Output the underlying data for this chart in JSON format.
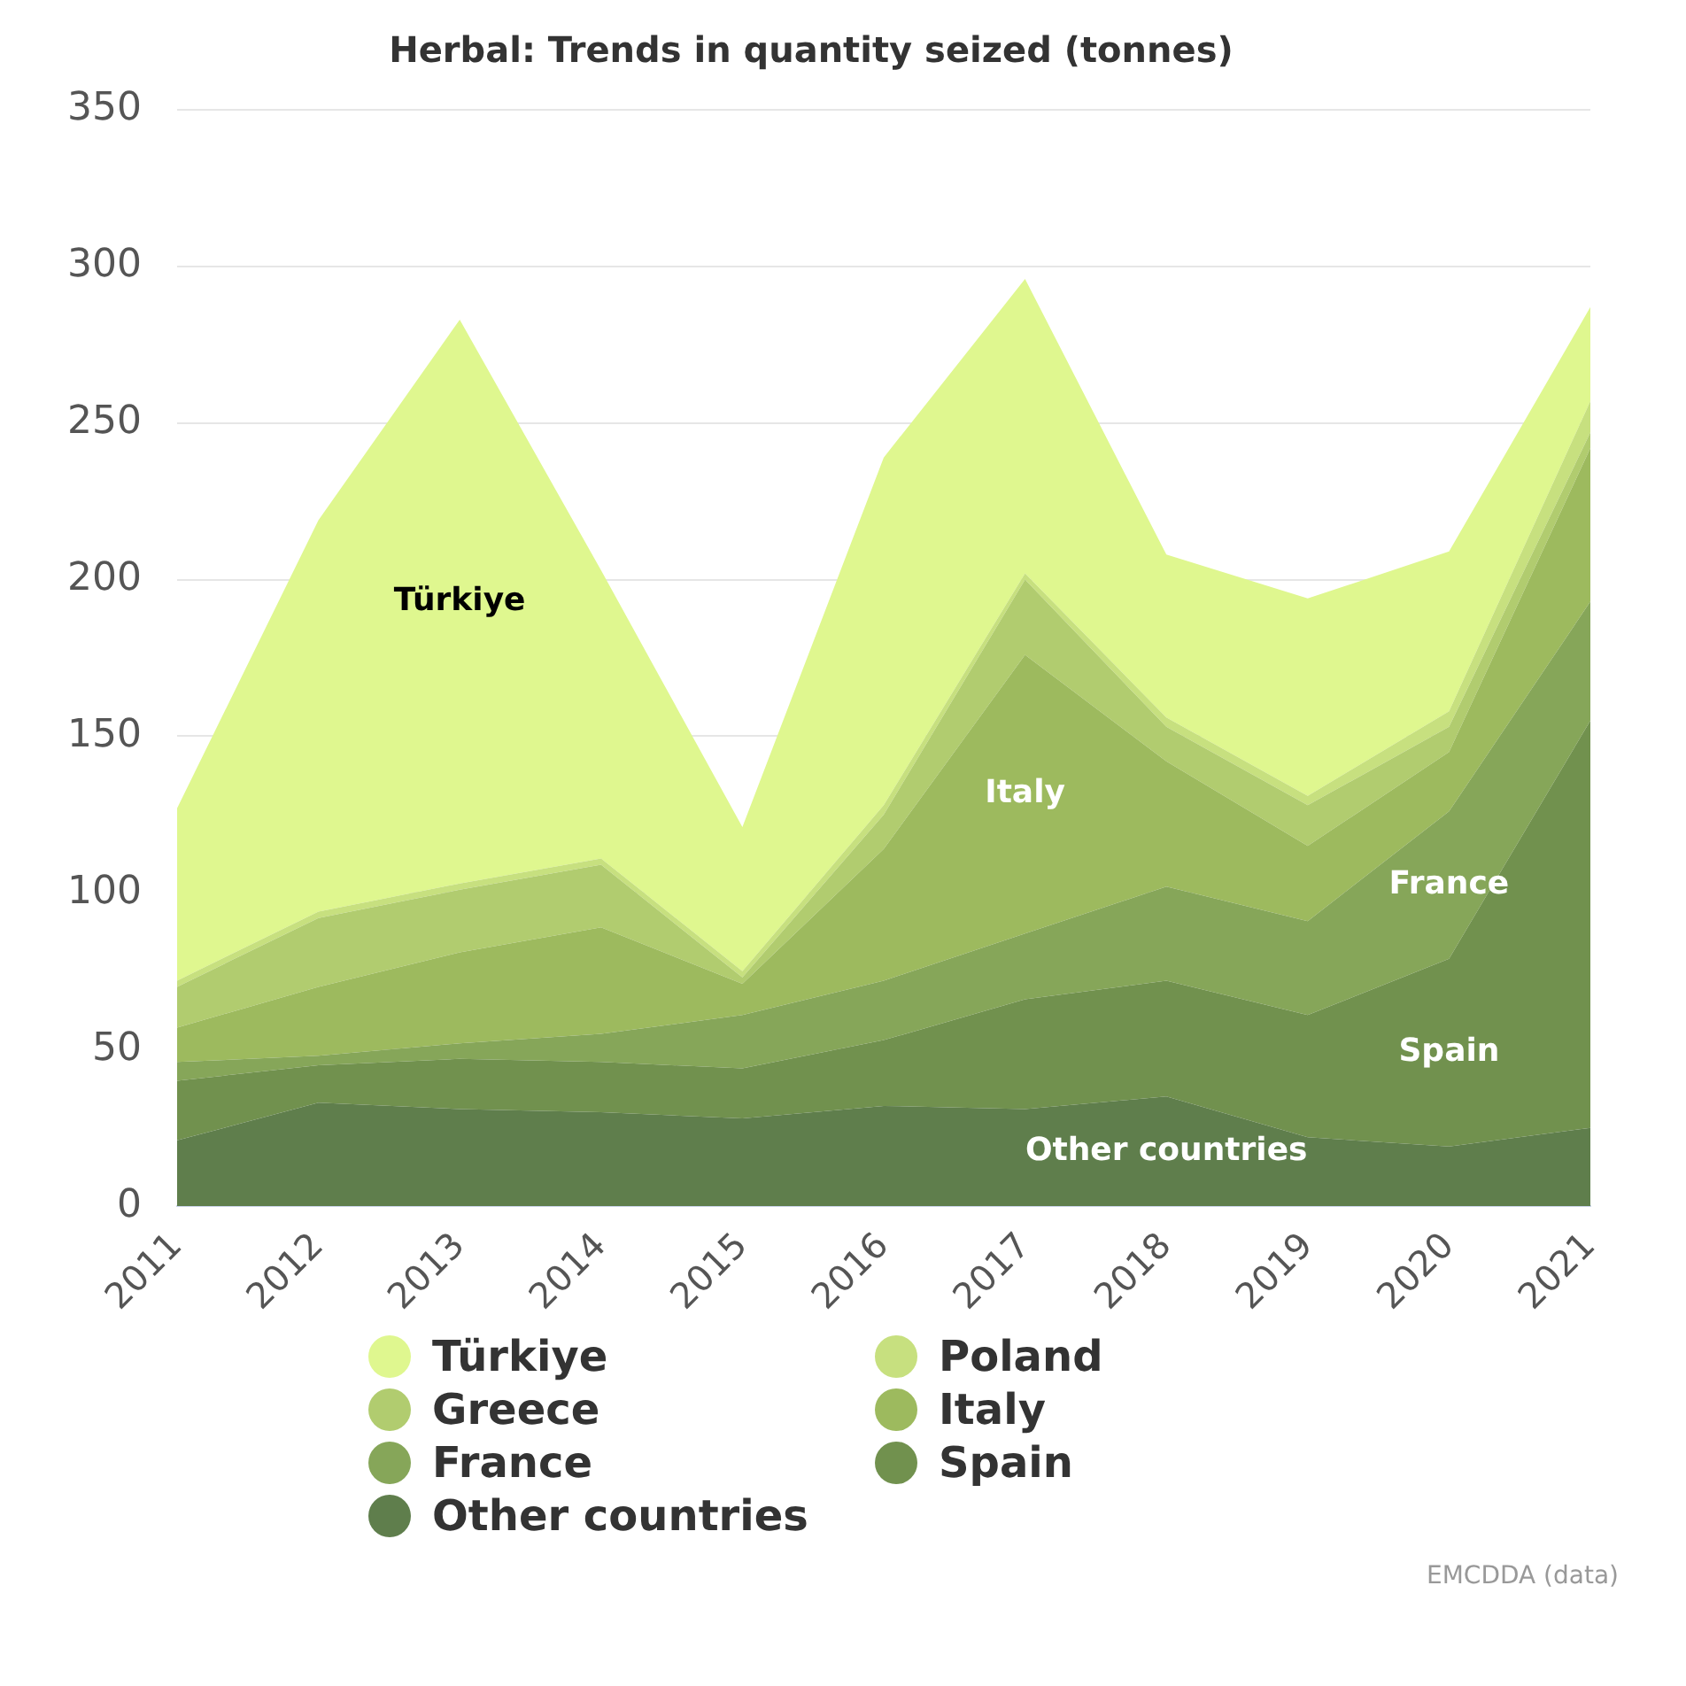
{
  "chart_data": {
    "type": "area",
    "title": "Herbal: Trends in quantity seized (tonnes)",
    "stacked": true,
    "categories": [
      "2011",
      "2012",
      "2013",
      "2014",
      "2015",
      "2016",
      "2017",
      "2018",
      "2019",
      "2020",
      "2021"
    ],
    "series": [
      {
        "name": "Other countries",
        "color": "#5f7e4c",
        "values": [
          21,
          33,
          31,
          30,
          28,
          32,
          31,
          35,
          22,
          19,
          25
        ]
      },
      {
        "name": "Spain",
        "color": "#71914e",
        "values": [
          19,
          12,
          16,
          16,
          16,
          21,
          35,
          37,
          39,
          60,
          130
        ]
      },
      {
        "name": "France",
        "color": "#86a659",
        "values": [
          6,
          3,
          5,
          9,
          17,
          19,
          21,
          30,
          30,
          47,
          38
        ]
      },
      {
        "name": "Italy",
        "color": "#9dba5e",
        "values": [
          11,
          22,
          29,
          34,
          10,
          42,
          89,
          40,
          24,
          19,
          49
        ]
      },
      {
        "name": "Greece",
        "color": "#b1cc6f",
        "values": [
          13,
          22,
          20,
          20,
          2,
          11,
          24,
          11,
          13,
          8,
          5
        ]
      },
      {
        "name": "Poland",
        "color": "#c7e07f",
        "values": [
          2,
          2,
          2,
          2,
          2,
          3,
          2,
          3,
          3,
          5,
          10
        ]
      },
      {
        "name": "Türkiye",
        "color": "#dff78f",
        "values": [
          55,
          125,
          180,
          92,
          46,
          111,
          94,
          52,
          63,
          51,
          30
        ]
      }
    ],
    "ylim": [
      0,
      350
    ],
    "yticks": [
      0,
      50,
      100,
      150,
      200,
      250,
      300,
      350
    ],
    "grid": "y",
    "legend": "bottom",
    "annotations": [
      "EMCDDA (data)"
    ]
  }
}
